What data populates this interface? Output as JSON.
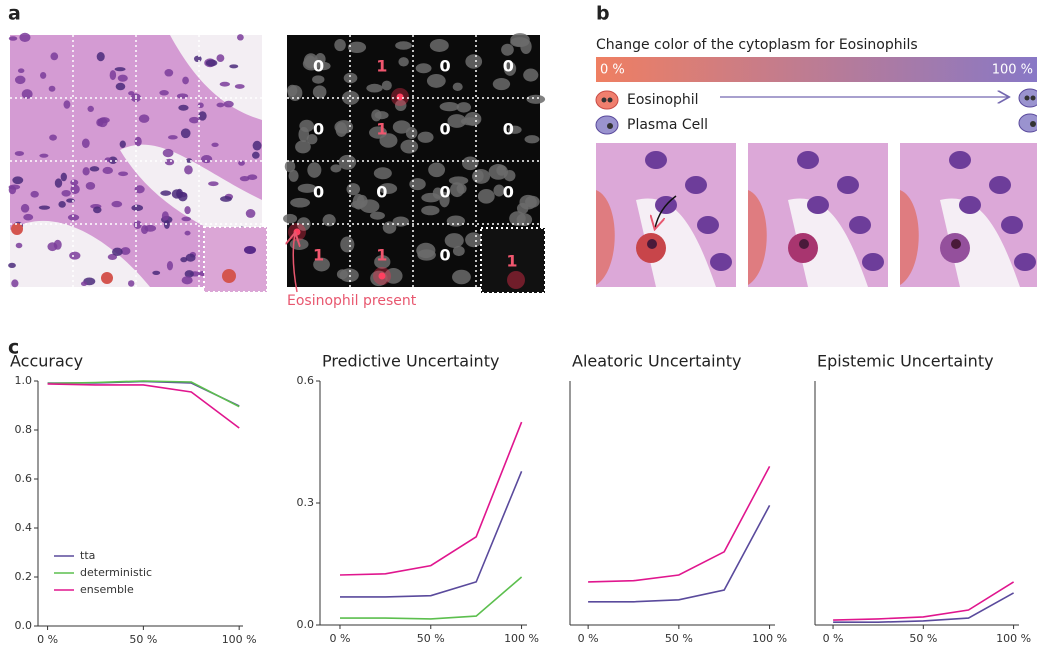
{
  "panel_a": {
    "label": "a",
    "grid_counts": [
      [
        0,
        1,
        0,
        0
      ],
      [
        0,
        1,
        0,
        0
      ],
      [
        0,
        0,
        0,
        0
      ],
      [
        1,
        1,
        0
      ]
    ],
    "inset_count": 1,
    "annotation": "Eosinophil present"
  },
  "panel_b": {
    "label": "b",
    "title": "Change color of the cytoplasm for Eosinophils",
    "scale_start": "0 %",
    "scale_end": "100 %",
    "legend": [
      "Eosinophil",
      "Plasma Cell"
    ]
  },
  "panel_c": {
    "label": "c"
  },
  "chart_data": [
    {
      "type": "line",
      "title": "Accuracy",
      "x": [
        0,
        25,
        50,
        75,
        100
      ],
      "xlim": [
        -5,
        102
      ],
      "xticks": [
        {
          "value": 0,
          "label": "0 %"
        },
        {
          "value": 50,
          "label": "50 %"
        },
        {
          "value": 100,
          "label": "100 %"
        }
      ],
      "ylim": [
        0,
        1
      ],
      "yticks": [
        {
          "value": 0,
          "label": "0.0"
        },
        {
          "value": 0.2,
          "label": "0.2"
        },
        {
          "value": 0.4,
          "label": "0.4"
        },
        {
          "value": 0.6,
          "label": "0.6"
        },
        {
          "value": 0.8,
          "label": "0.8"
        },
        {
          "value": 1,
          "label": "1.0"
        }
      ],
      "legend": "lower left",
      "series": [
        {
          "name": "tta",
          "color": "#5a4a9c",
          "values": [
            0.992,
            0.992,
            0.998,
            0.992,
            0.898
          ]
        },
        {
          "name": "deterministic",
          "color": "#5cbf4e",
          "values": [
            0.99,
            0.994,
            1.0,
            0.996,
            0.895
          ]
        },
        {
          "name": "ensemble",
          "color": "#e0168e",
          "values": [
            0.988,
            0.984,
            0.984,
            0.955,
            0.808
          ]
        }
      ]
    },
    {
      "type": "line",
      "title": "Predictive Uncertainty",
      "x": [
        0,
        25,
        50,
        75,
        100
      ],
      "xlim": [
        -11,
        103
      ],
      "xticks": [
        {
          "value": 0,
          "label": "0 %"
        },
        {
          "value": 50,
          "label": "50 %"
        },
        {
          "value": 100,
          "label": "100 %"
        }
      ],
      "ylim": [
        0,
        0.6
      ],
      "yticks": [
        {
          "value": 0,
          "label": "0.0"
        },
        0.3,
        0.6
      ],
      "series": [
        {
          "color": "#5a4a9c",
          "values": [
            0.069,
            0.069,
            0.072,
            0.106,
            0.378
          ]
        },
        {
          "color": "#5cbf4e",
          "values": [
            0.017,
            0.017,
            0.015,
            0.022,
            0.118
          ]
        },
        {
          "color": "#e0168e",
          "values": [
            0.123,
            0.126,
            0.146,
            0.217,
            0.499
          ]
        }
      ]
    },
    {
      "type": "line",
      "title": "Aleatoric Uncertainty",
      "x": [
        0,
        25,
        50,
        75,
        100
      ],
      "xlim": [
        -10,
        103
      ],
      "xticks": [
        {
          "value": 0,
          "label": "0 %"
        },
        {
          "value": 50,
          "label": "50 %"
        },
        {
          "value": 100,
          "label": "100 %"
        }
      ],
      "ylim": [
        0,
        0.6
      ],
      "series": [
        {
          "color": "#5a4a9c",
          "values": [
            0.057,
            0.057,
            0.062,
            0.086,
            0.294
          ]
        },
        {
          "color": "#e0168e",
          "values": [
            0.106,
            0.109,
            0.123,
            0.18,
            0.39
          ]
        }
      ]
    },
    {
      "type": "line",
      "title": "Epistemic Uncertainty",
      "x": [
        0,
        25,
        50,
        75,
        100
      ],
      "xlim": [
        -10,
        103
      ],
      "xticks": [
        {
          "value": 0,
          "label": "0 %"
        },
        {
          "value": 50,
          "label": "50 %"
        },
        {
          "value": 100,
          "label": "100 %"
        }
      ],
      "ylim": [
        0,
        0.6
      ],
      "series": [
        {
          "color": "#5a4a9c",
          "values": [
            0.007,
            0.007,
            0.01,
            0.017,
            0.079
          ]
        },
        {
          "color": "#e0168e",
          "values": [
            0.012,
            0.015,
            0.02,
            0.037,
            0.106
          ]
        }
      ]
    }
  ]
}
